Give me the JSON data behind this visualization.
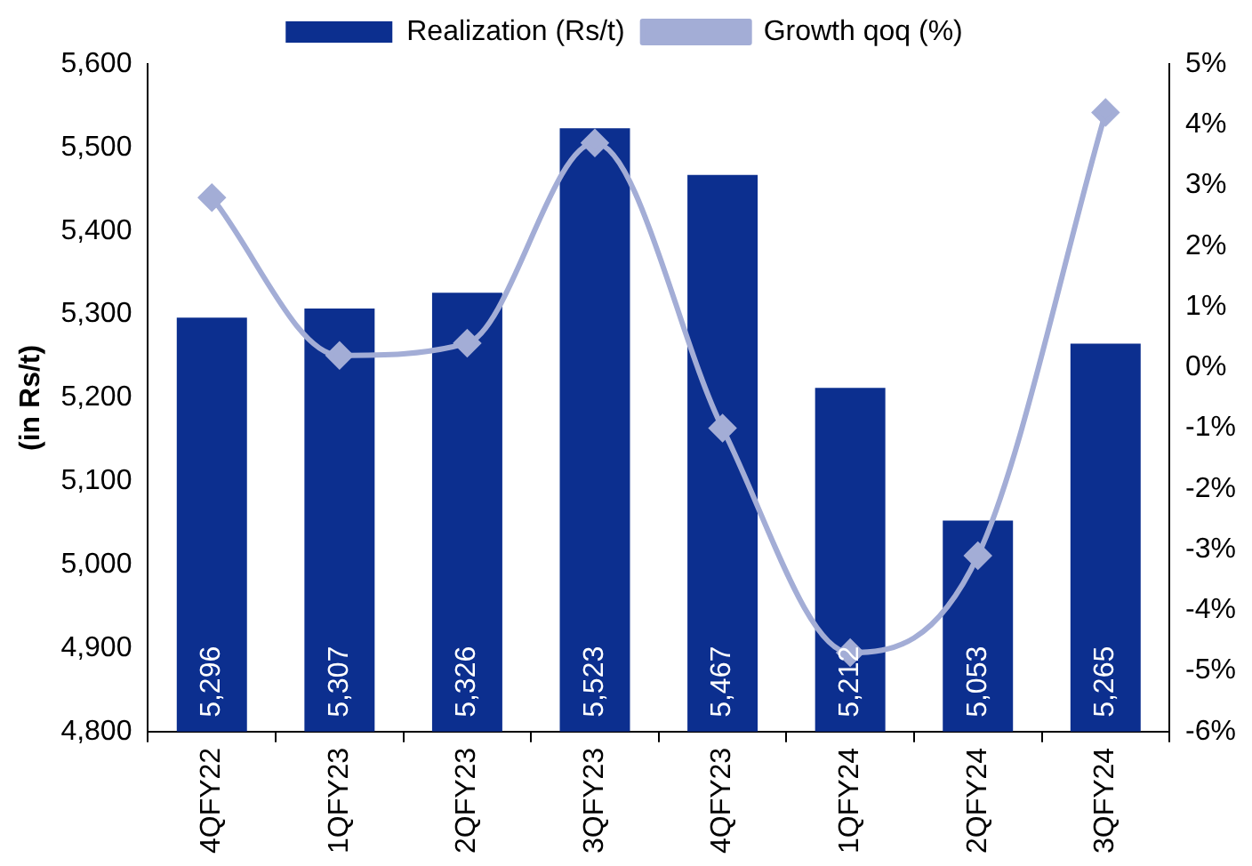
{
  "chart_data": {
    "type": "bar",
    "ylabel": "(in Rs/t)",
    "categories": [
      "4QFY22",
      "1QFY23",
      "2QFY23",
      "3QFY23",
      "4QFY23",
      "1QFY24",
      "2QFY24",
      "3QFY24"
    ],
    "series": [
      {
        "name": "Realization (Rs/t)",
        "color": "#0c2f8f",
        "values": [
          5296,
          5307,
          5326,
          5523,
          5467,
          5212,
          5053,
          5265
        ],
        "value_labels": [
          "5,296",
          "5,307",
          "5,326",
          "5,523",
          "5,467",
          "5,212",
          "5,053",
          "5,265"
        ]
      },
      {
        "name": "Growth qoq (%)",
        "type": "line",
        "axis": "y2",
        "color": "#a3add6",
        "marker": "diamond",
        "values": [
          2.8,
          0.2,
          0.4,
          3.7,
          -1.0,
          -4.7,
          -3.1,
          4.2
        ]
      }
    ],
    "ylim": [
      4800,
      5600
    ],
    "yticks": [
      {
        "value": 4800,
        "label": "4,800"
      },
      {
        "value": 4900,
        "label": "4,900"
      },
      {
        "value": 5000,
        "label": "5,000"
      },
      {
        "value": 5100,
        "label": "5,100"
      },
      {
        "value": 5200,
        "label": "5,200"
      },
      {
        "value": 5300,
        "label": "5,300"
      },
      {
        "value": 5400,
        "label": "5,400"
      },
      {
        "value": 5500,
        "label": "5,500"
      },
      {
        "value": 5600,
        "label": "5,600"
      }
    ],
    "y2lim": [
      -6,
      5
    ],
    "y2ticks": [
      {
        "value": -6,
        "label": "-6%"
      },
      {
        "value": -5,
        "label": "-5%"
      },
      {
        "value": -4,
        "label": "-4%"
      },
      {
        "value": -3,
        "label": "-3%"
      },
      {
        "value": -2,
        "label": "-2%"
      },
      {
        "value": -1,
        "label": "-1%"
      },
      {
        "value": 0,
        "label": "0%"
      },
      {
        "value": 1,
        "label": "1%"
      },
      {
        "value": 2,
        "label": "2%"
      },
      {
        "value": 3,
        "label": "3%"
      },
      {
        "value": 4,
        "label": "4%"
      },
      {
        "value": 5,
        "label": "5%"
      }
    ],
    "grid": false,
    "legend": "top"
  }
}
